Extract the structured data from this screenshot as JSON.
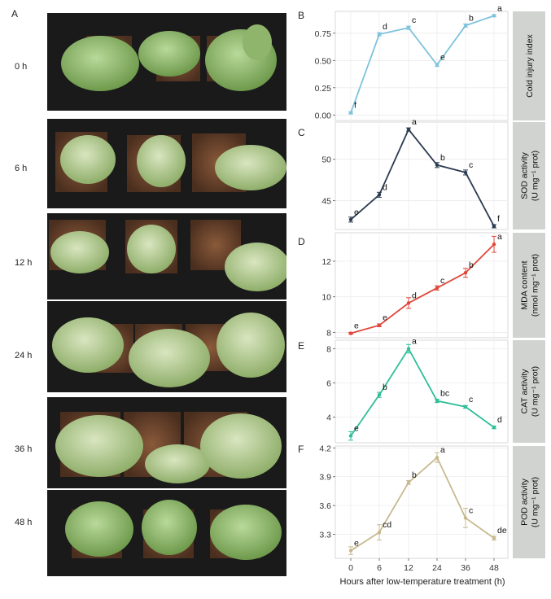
{
  "figure": {
    "panel_letters": [
      "A",
      "B",
      "C",
      "D",
      "E",
      "F"
    ],
    "photo_time_labels": [
      "0 h",
      "6 h",
      "12 h",
      "24 h",
      "36 h",
      "48 h"
    ],
    "x_axis_title": "Hours after low-temperature treatment (h)",
    "x_ticks": [
      "0",
      "6",
      "12",
      "24",
      "36",
      "48"
    ]
  },
  "chart_data": [
    {
      "type": "line",
      "panel": "B",
      "strip_label": [
        "Cold injury index"
      ],
      "color": "#7fc3dc",
      "x": [
        "0",
        "6",
        "12",
        "24",
        "36",
        "48"
      ],
      "values": [
        0.02,
        0.74,
        0.8,
        0.46,
        0.82,
        0.91
      ],
      "errors": [
        0.01,
        0.015,
        0.015,
        0.015,
        0.015,
        0.01
      ],
      "labels": [
        "f",
        "d",
        "c",
        "e",
        "b",
        "a"
      ],
      "y_ticks": [
        "0.00",
        "0.25",
        "0.50",
        "0.75"
      ],
      "ylim": [
        -0.05,
        0.95
      ]
    },
    {
      "type": "line",
      "panel": "C",
      "strip_label": [
        "SOD activity",
        "(U mg⁻¹ prot)"
      ],
      "color": "#2b3b50",
      "x": [
        "0",
        "6",
        "12",
        "24",
        "36",
        "48"
      ],
      "values": [
        42.7,
        45.7,
        53.6,
        49.3,
        48.4,
        41.9
      ],
      "errors": [
        0.3,
        0.3,
        0.2,
        0.3,
        0.3,
        0.2
      ],
      "labels": [
        "e",
        "d",
        "a",
        "b",
        "c",
        "f"
      ],
      "y_ticks": [
        "45",
        "50"
      ],
      "ylim": [
        41.5,
        54.5
      ]
    },
    {
      "type": "line",
      "panel": "D",
      "strip_label": [
        "MDA content",
        "(nmol mg⁻¹ prot)"
      ],
      "color": "#e0473a",
      "x": [
        "0",
        "6",
        "12",
        "24",
        "36",
        "48"
      ],
      "values": [
        7.95,
        8.4,
        9.65,
        10.5,
        11.35,
        12.95
      ],
      "errors": [
        0.05,
        0.08,
        0.3,
        0.12,
        0.25,
        0.45
      ],
      "labels": [
        "e",
        "e",
        "d",
        "c",
        "b",
        "a"
      ],
      "y_ticks": [
        "8",
        "10",
        "12"
      ],
      "ylim": [
        7.7,
        13.6
      ]
    },
    {
      "type": "line",
      "panel": "E",
      "strip_label": [
        "CAT activity",
        "(U mg⁻¹ prot)"
      ],
      "color": "#2fbf9a",
      "x": [
        "0",
        "6",
        "12",
        "24",
        "36",
        "48"
      ],
      "values": [
        2.9,
        5.3,
        8.0,
        4.95,
        4.6,
        3.4
      ],
      "errors": [
        0.25,
        0.15,
        0.25,
        0.1,
        0.08,
        0.08
      ],
      "labels": [
        "e",
        "b",
        "a",
        "bc",
        "c",
        "d"
      ],
      "y_ticks": [
        "4",
        "6",
        "8"
      ],
      "ylim": [
        2.5,
        8.5
      ]
    },
    {
      "type": "line",
      "panel": "F",
      "strip_label": [
        "POD activity",
        "(U mg⁻¹ prot)"
      ],
      "color": "#c7b98e",
      "x": [
        "0",
        "6",
        "12",
        "24",
        "36",
        "48"
      ],
      "values": [
        3.13,
        3.32,
        3.84,
        4.1,
        3.47,
        3.26
      ],
      "errors": [
        0.04,
        0.08,
        0.02,
        0.05,
        0.1,
        0.02
      ],
      "labels": [
        "e",
        "cd",
        "b",
        "a",
        "c",
        "de"
      ],
      "y_ticks": [
        "3.3",
        "3.6",
        "3.9",
        "4.2"
      ],
      "ylim": [
        3.05,
        4.22
      ]
    }
  ]
}
